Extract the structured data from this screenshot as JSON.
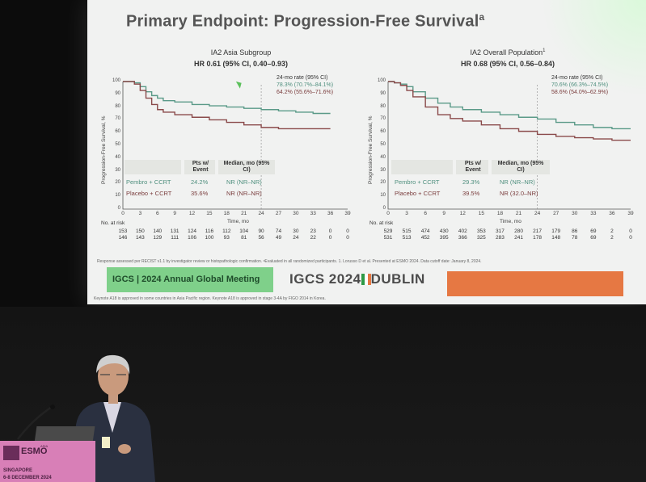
{
  "slide": {
    "title": "Primary Endpoint: Progression-Free Survival",
    "title_sup": "a",
    "panels": [
      {
        "subgroup": "IA2 Asia Subgroup",
        "hr": "HR 0.61 (95% CI, 0.40–0.93)",
        "rate_header": "24-mo rate (95% CI)",
        "rate_pembro": "78.3% (70.7%–84.1%)",
        "rate_placebo": "64.2% (55.6%–71.6%)",
        "ylabel": "Progression-Free Survival, %",
        "xlabel": "Time, mo",
        "col_events": "Pts w/ Event",
        "col_median": "Median, mo (95% CI)",
        "arm_pembro": "Pembro + CCRT",
        "arm_placebo": "Placebo + CCRT",
        "events_pembro": "24.2%",
        "events_placebo": "35.6%",
        "median_pembro": "NR (NR–NR)",
        "median_placebo": "NR (NR–NR)",
        "at_risk_label": "No. at risk",
        "risk_pembro": [
          "153",
          "150",
          "140",
          "131",
          "124",
          "116",
          "112",
          "104",
          "90",
          "74",
          "30",
          "23",
          "0",
          "0"
        ],
        "risk_placebo": [
          "146",
          "143",
          "129",
          "111",
          "106",
          "100",
          "93",
          "81",
          "56",
          "49",
          "24",
          "22",
          "0",
          "0"
        ]
      },
      {
        "subgroup": "IA2 Overall Population",
        "subgroup_sup": "1",
        "hr": "HR 0.68 (95% CI, 0.56–0.84)",
        "rate_header": "24-mo rate (95% CI)",
        "rate_pembro": "70.6% (66.3%–74.5%)",
        "rate_placebo": "58.6% (54.0%–62.9%)",
        "ylabel": "Progression-Free Survival, %",
        "xlabel": "Time, mo",
        "col_events": "Pts w/ Event",
        "col_median": "Median, mo (95% CI)",
        "arm_pembro": "Pembro + CCRT",
        "arm_placebo": "Placebo + CCRT",
        "events_pembro": "29.3%",
        "events_placebo": "39.5%",
        "median_pembro": "NR (NR–NR)",
        "median_placebo": "NR (32.0–NR)",
        "at_risk_label": "No. at risk",
        "risk_pembro": [
          "529",
          "515",
          "474",
          "430",
          "402",
          "353",
          "317",
          "280",
          "217",
          "179",
          "86",
          "69",
          "2",
          "0"
        ],
        "risk_placebo": [
          "531",
          "513",
          "452",
          "395",
          "366",
          "325",
          "283",
          "241",
          "178",
          "148",
          "78",
          "69",
          "2",
          "0"
        ]
      }
    ],
    "footnote": "Response assessed per RECIST v1.1 by investigator review or histopathologic confirmation. ᵃEvaluated in all randomized participants. 1. Lorusso D et al. Presented at ESMO 2024. Data cutoff date: January 8, 2024.",
    "footnote2": "Keynote A18 is approved in some countries in Asia Pacific region. Keynote A18 is approved in stage 3-4A by FIGO 2014 in Korea.",
    "banner_left": "IGCS | 2024 Annual Global Meeting",
    "banner_center_left": "IGCS 2024",
    "banner_center_right": "DUBLIN"
  },
  "podium": {
    "brand": "ESMO",
    "brand_sup": "ASIA",
    "city": "SINGAPORE",
    "dates": "6-8 DECEMBER 2024"
  },
  "chart_data": [
    {
      "type": "line",
      "title": "IA2 Asia Subgroup",
      "xlabel": "Time, mo",
      "ylabel": "Progression-Free Survival, %",
      "xlim": [
        0,
        39
      ],
      "ylim": [
        0,
        100
      ],
      "x_ticks": [
        0,
        3,
        6,
        9,
        12,
        15,
        18,
        21,
        24,
        27,
        30,
        33,
        36,
        39
      ],
      "y_ticks": [
        0,
        10,
        20,
        30,
        40,
        50,
        60,
        70,
        80,
        90,
        100
      ],
      "series": [
        {
          "name": "Pembro + CCRT",
          "color": "#5a9a88",
          "x": [
            0,
            1,
            2,
            3,
            4,
            5,
            6,
            7,
            9,
            12,
            15,
            18,
            21,
            24,
            27,
            30,
            33,
            36
          ],
          "y": [
            100,
            100,
            99,
            96,
            92,
            89,
            87,
            85,
            84,
            82,
            81,
            80,
            79,
            78,
            77,
            76,
            75,
            75
          ]
        },
        {
          "name": "Placebo + CCRT",
          "color": "#8a4a4a",
          "x": [
            0,
            1,
            2,
            3,
            4,
            5,
            6,
            7,
            9,
            12,
            15,
            18,
            21,
            24,
            27,
            30,
            33,
            36
          ],
          "y": [
            100,
            100,
            98,
            93,
            87,
            82,
            78,
            76,
            74,
            72,
            70,
            68,
            66,
            64,
            63,
            63,
            63,
            63
          ]
        }
      ],
      "grid": false
    },
    {
      "type": "line",
      "title": "IA2 Overall Population",
      "xlabel": "Time, mo",
      "ylabel": "Progression-Free Survival, %",
      "xlim": [
        0,
        39
      ],
      "ylim": [
        0,
        100
      ],
      "x_ticks": [
        0,
        3,
        6,
        9,
        12,
        15,
        18,
        21,
        24,
        27,
        30,
        33,
        36,
        39
      ],
      "y_ticks": [
        0,
        10,
        20,
        30,
        40,
        50,
        60,
        70,
        80,
        90,
        100
      ],
      "series": [
        {
          "name": "Pembro + CCRT",
          "color": "#5a9a88",
          "x": [
            0,
            1,
            2,
            3,
            4,
            6,
            8,
            10,
            12,
            15,
            18,
            21,
            24,
            27,
            30,
            33,
            36,
            39
          ],
          "y": [
            100,
            99,
            98,
            96,
            92,
            87,
            83,
            80,
            78,
            76,
            74,
            72,
            70.6,
            68,
            66,
            64,
            63,
            63
          ]
        },
        {
          "name": "Placebo + CCRT",
          "color": "#8a4a4a",
          "x": [
            0,
            1,
            2,
            3,
            4,
            6,
            8,
            10,
            12,
            15,
            18,
            21,
            24,
            27,
            30,
            33,
            36,
            39
          ],
          "y": [
            100,
            99,
            97,
            93,
            88,
            80,
            74,
            71,
            69,
            66,
            63,
            61,
            58.6,
            57,
            56,
            55,
            54,
            54
          ]
        }
      ],
      "grid": false
    }
  ]
}
